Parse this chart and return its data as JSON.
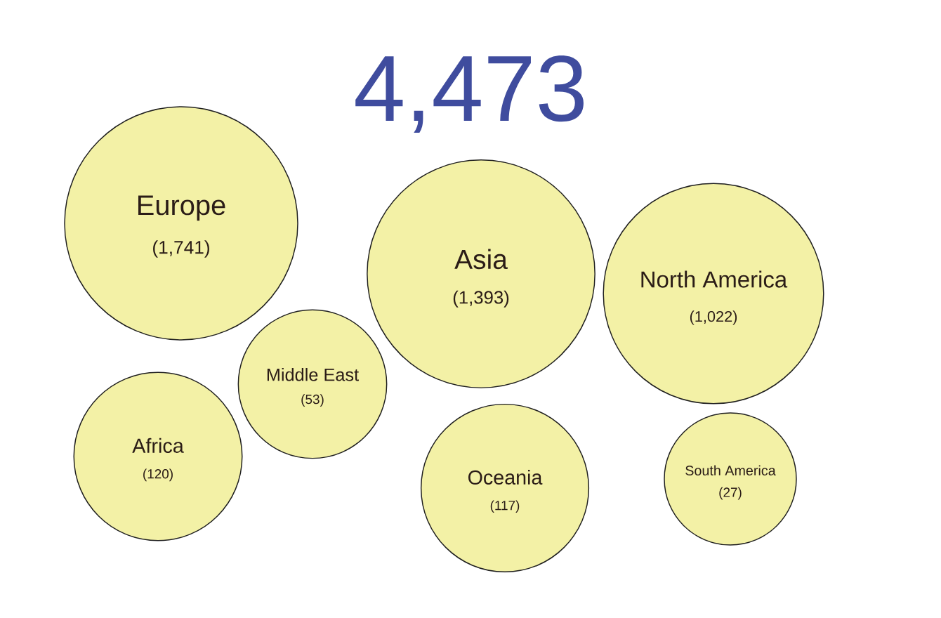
{
  "chart_data": {
    "type": "other",
    "title": "4,473",
    "categories": [
      "Europe",
      "Asia",
      "North America",
      "Middle East",
      "Africa",
      "Oceania",
      "South America"
    ],
    "values": [
      1741,
      1393,
      1022,
      53,
      120,
      117,
      27
    ],
    "value_labels": [
      "(1,741)",
      "(1,393)",
      "(1,022)",
      "(53)",
      "(120)",
      "(117)",
      "(27)"
    ],
    "color": "#f3f1a6"
  }
}
